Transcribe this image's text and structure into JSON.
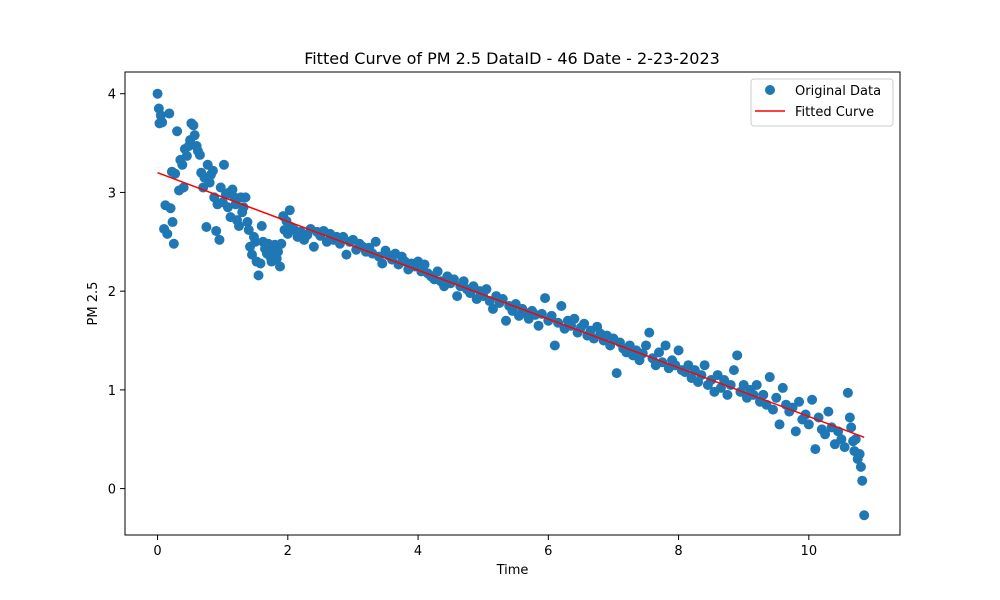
{
  "chart_data": {
    "type": "scatter",
    "title": "Fitted Curve of PM 2.5 DataID - 46 Date - 2-23-2023",
    "xlabel": "Time",
    "ylabel": "PM 2.5",
    "xlim": [
      -0.5,
      11.4
    ],
    "ylim": [
      -0.47,
      4.22
    ],
    "xticks": [
      0,
      2,
      4,
      6,
      8,
      10
    ],
    "yticks": [
      0,
      1,
      2,
      3,
      4
    ],
    "grid": false,
    "legend_position": "top-right",
    "colors": {
      "scatter": "#1f77b4",
      "fit": "#ff0000"
    },
    "series": [
      {
        "name": "Original Data",
        "kind": "scatter",
        "points": [
          [
            0.0,
            4.0
          ],
          [
            0.02,
            3.85
          ],
          [
            0.03,
            3.7
          ],
          [
            0.05,
            3.78
          ],
          [
            0.07,
            3.71
          ],
          [
            0.1,
            2.63
          ],
          [
            0.12,
            2.87
          ],
          [
            0.15,
            2.58
          ],
          [
            0.18,
            3.8
          ],
          [
            0.2,
            2.84
          ],
          [
            0.23,
            2.7
          ],
          [
            0.25,
            2.48
          ],
          [
            0.22,
            3.21
          ],
          [
            0.27,
            3.19
          ],
          [
            0.3,
            3.62
          ],
          [
            0.33,
            3.02
          ],
          [
            0.35,
            3.33
          ],
          [
            0.38,
            3.28
          ],
          [
            0.4,
            3.05
          ],
          [
            0.42,
            3.44
          ],
          [
            0.45,
            3.37
          ],
          [
            0.48,
            3.47
          ],
          [
            0.5,
            3.53
          ],
          [
            0.52,
            3.7
          ],
          [
            0.55,
            3.68
          ],
          [
            0.57,
            3.58
          ],
          [
            0.6,
            3.47
          ],
          [
            0.62,
            3.42
          ],
          [
            0.65,
            3.38
          ],
          [
            0.67,
            3.2
          ],
          [
            0.7,
            3.05
          ],
          [
            0.72,
            3.15
          ],
          [
            0.75,
            2.65
          ],
          [
            0.77,
            3.28
          ],
          [
            0.8,
            3.1
          ],
          [
            0.82,
            3.18
          ],
          [
            0.85,
            3.22
          ],
          [
            0.87,
            2.95
          ],
          [
            0.9,
            2.61
          ],
          [
            0.92,
            2.88
          ],
          [
            0.95,
            2.52
          ],
          [
            0.97,
            3.05
          ],
          [
            1.0,
            2.9
          ],
          [
            1.02,
            3.28
          ],
          [
            1.05,
            2.98
          ],
          [
            1.08,
            2.85
          ],
          [
            1.1,
            3.0
          ],
          [
            1.12,
            2.75
          ],
          [
            1.15,
            3.03
          ],
          [
            1.18,
            2.95
          ],
          [
            1.2,
            2.88
          ],
          [
            1.22,
            2.72
          ],
          [
            1.25,
            2.66
          ],
          [
            1.28,
            2.95
          ],
          [
            1.3,
            2.8
          ],
          [
            1.32,
            2.85
          ],
          [
            1.35,
            2.95
          ],
          [
            1.38,
            2.7
          ],
          [
            1.4,
            2.62
          ],
          [
            1.42,
            2.45
          ],
          [
            1.45,
            2.37
          ],
          [
            1.48,
            2.55
          ],
          [
            1.5,
            2.5
          ],
          [
            1.52,
            2.3
          ],
          [
            1.55,
            2.16
          ],
          [
            1.58,
            2.28
          ],
          [
            1.6,
            2.66
          ],
          [
            1.62,
            2.5
          ],
          [
            1.65,
            2.43
          ],
          [
            1.68,
            2.38
          ],
          [
            1.7,
            2.48
          ],
          [
            1.73,
            2.35
          ],
          [
            1.75,
            2.3
          ],
          [
            1.78,
            2.42
          ],
          [
            1.8,
            2.47
          ],
          [
            1.83,
            2.33
          ],
          [
            1.85,
            2.4
          ],
          [
            1.88,
            2.25
          ],
          [
            1.9,
            2.48
          ],
          [
            1.93,
            2.76
          ],
          [
            1.95,
            2.62
          ],
          [
            1.98,
            2.71
          ],
          [
            2.0,
            2.58
          ],
          [
            2.03,
            2.82
          ],
          [
            2.05,
            2.65
          ],
          [
            2.1,
            2.62
          ],
          [
            2.15,
            2.55
          ],
          [
            2.2,
            2.6
          ],
          [
            2.25,
            2.52
          ],
          [
            2.3,
            2.57
          ],
          [
            2.35,
            2.63
          ],
          [
            2.4,
            2.45
          ],
          [
            2.45,
            2.6
          ],
          [
            2.5,
            2.56
          ],
          [
            2.55,
            2.61
          ],
          [
            2.6,
            2.5
          ],
          [
            2.65,
            2.58
          ],
          [
            2.7,
            2.52
          ],
          [
            2.75,
            2.55
          ],
          [
            2.8,
            2.48
          ],
          [
            2.85,
            2.55
          ],
          [
            2.9,
            2.37
          ],
          [
            2.95,
            2.5
          ],
          [
            3.0,
            2.52
          ],
          [
            3.05,
            2.42
          ],
          [
            3.1,
            2.48
          ],
          [
            3.15,
            2.45
          ],
          [
            3.2,
            2.4
          ],
          [
            3.25,
            2.44
          ],
          [
            3.3,
            2.38
          ],
          [
            3.35,
            2.5
          ],
          [
            3.4,
            2.35
          ],
          [
            3.45,
            2.28
          ],
          [
            3.5,
            2.41
          ],
          [
            3.55,
            2.36
          ],
          [
            3.6,
            2.32
          ],
          [
            3.65,
            2.38
          ],
          [
            3.7,
            2.27
          ],
          [
            3.75,
            2.35
          ],
          [
            3.8,
            2.3
          ],
          [
            3.85,
            2.22
          ],
          [
            3.9,
            2.28
          ],
          [
            3.95,
            2.25
          ],
          [
            4.0,
            2.3
          ],
          [
            4.05,
            2.2
          ],
          [
            4.1,
            2.27
          ],
          [
            4.15,
            2.18
          ],
          [
            4.2,
            2.15
          ],
          [
            4.25,
            2.12
          ],
          [
            4.3,
            2.2
          ],
          [
            4.35,
            2.1
          ],
          [
            4.4,
            2.05
          ],
          [
            4.45,
            2.15
          ],
          [
            4.5,
            2.08
          ],
          [
            4.55,
            2.12
          ],
          [
            4.6,
            1.95
          ],
          [
            4.65,
            2.05
          ],
          [
            4.7,
            2.1
          ],
          [
            4.75,
            2.02
          ],
          [
            4.8,
            1.98
          ],
          [
            4.85,
            2.05
          ],
          [
            4.9,
            1.92
          ],
          [
            4.95,
            2.0
          ],
          [
            5.0,
            1.95
          ],
          [
            5.05,
            2.02
          ],
          [
            5.1,
            1.9
          ],
          [
            5.15,
            1.82
          ],
          [
            5.2,
            1.95
          ],
          [
            5.25,
            1.88
          ],
          [
            5.3,
            1.92
          ],
          [
            5.35,
            1.7
          ],
          [
            5.4,
            1.85
          ],
          [
            5.45,
            1.8
          ],
          [
            5.5,
            1.87
          ],
          [
            5.55,
            1.75
          ],
          [
            5.6,
            1.82
          ],
          [
            5.65,
            1.78
          ],
          [
            5.7,
            1.72
          ],
          [
            5.75,
            1.8
          ],
          [
            5.8,
            1.76
          ],
          [
            5.85,
            1.65
          ],
          [
            5.9,
            1.77
          ],
          [
            5.95,
            1.93
          ],
          [
            6.0,
            1.7
          ],
          [
            6.05,
            1.75
          ],
          [
            6.1,
            1.45
          ],
          [
            6.15,
            1.68
          ],
          [
            6.2,
            1.85
          ],
          [
            6.25,
            1.62
          ],
          [
            6.3,
            1.7
          ],
          [
            6.35,
            1.65
          ],
          [
            6.4,
            1.72
          ],
          [
            6.45,
            1.58
          ],
          [
            6.5,
            1.63
          ],
          [
            6.55,
            1.67
          ],
          [
            6.6,
            1.55
          ],
          [
            6.65,
            1.6
          ],
          [
            6.7,
            1.52
          ],
          [
            6.75,
            1.64
          ],
          [
            6.8,
            1.57
          ],
          [
            6.85,
            1.5
          ],
          [
            6.9,
            1.55
          ],
          [
            6.95,
            1.45
          ],
          [
            7.0,
            1.52
          ],
          [
            7.05,
            1.17
          ],
          [
            7.1,
            1.48
          ],
          [
            7.15,
            1.42
          ],
          [
            7.2,
            1.38
          ],
          [
            7.25,
            1.45
          ],
          [
            7.3,
            1.35
          ],
          [
            7.35,
            1.4
          ],
          [
            7.4,
            1.3
          ],
          [
            7.45,
            1.37
          ],
          [
            7.5,
            1.45
          ],
          [
            7.55,
            1.58
          ],
          [
            7.6,
            1.32
          ],
          [
            7.65,
            1.25
          ],
          [
            7.7,
            1.38
          ],
          [
            7.75,
            1.28
          ],
          [
            7.8,
            1.45
          ],
          [
            7.85,
            1.22
          ],
          [
            7.9,
            1.3
          ],
          [
            7.95,
            1.25
          ],
          [
            8.0,
            1.4
          ],
          [
            8.05,
            1.2
          ],
          [
            8.1,
            1.18
          ],
          [
            8.15,
            1.25
          ],
          [
            8.2,
            1.12
          ],
          [
            8.25,
            1.2
          ],
          [
            8.3,
            1.08
          ],
          [
            8.35,
            1.15
          ],
          [
            8.4,
            1.25
          ],
          [
            8.45,
            1.05
          ],
          [
            8.5,
            1.1
          ],
          [
            8.55,
            0.98
          ],
          [
            8.6,
            1.15
          ],
          [
            8.65,
            1.02
          ],
          [
            8.7,
            1.1
          ],
          [
            8.75,
            0.95
          ],
          [
            8.8,
            1.05
          ],
          [
            8.85,
            1.2
          ],
          [
            8.9,
            1.35
          ],
          [
            8.95,
            0.98
          ],
          [
            9.0,
            1.05
          ],
          [
            9.05,
            0.92
          ],
          [
            9.1,
            1.0
          ],
          [
            9.15,
            0.95
          ],
          [
            9.2,
            1.05
          ],
          [
            9.25,
            0.88
          ],
          [
            9.3,
            0.95
          ],
          [
            9.35,
            0.85
          ],
          [
            9.4,
            1.13
          ],
          [
            9.45,
            0.8
          ],
          [
            9.5,
            0.92
          ],
          [
            9.55,
            0.65
          ],
          [
            9.6,
            1.02
          ],
          [
            9.65,
            0.85
          ],
          [
            9.7,
            0.78
          ],
          [
            9.75,
            0.82
          ],
          [
            9.8,
            0.58
          ],
          [
            9.85,
            0.88
          ],
          [
            9.9,
            0.7
          ],
          [
            9.95,
            0.75
          ],
          [
            10.0,
            0.65
          ],
          [
            10.05,
            0.9
          ],
          [
            10.1,
            0.4
          ],
          [
            10.15,
            0.72
          ],
          [
            10.2,
            0.6
          ],
          [
            10.25,
            0.55
          ],
          [
            10.3,
            0.78
          ],
          [
            10.35,
            0.62
          ],
          [
            10.4,
            0.45
          ],
          [
            10.45,
            0.58
          ],
          [
            10.5,
            0.5
          ],
          [
            10.55,
            0.42
          ],
          [
            10.6,
            0.97
          ],
          [
            10.63,
            0.72
          ],
          [
            10.65,
            0.62
          ],
          [
            10.68,
            0.48
          ],
          [
            10.7,
            0.38
          ],
          [
            10.72,
            0.5
          ],
          [
            10.75,
            0.3
          ],
          [
            10.78,
            0.35
          ],
          [
            10.8,
            0.22
          ],
          [
            10.82,
            0.08
          ],
          [
            10.85,
            -0.27
          ]
        ]
      },
      {
        "name": "Fitted Curve",
        "kind": "line",
        "points": [
          [
            0.0,
            3.2
          ],
          [
            10.85,
            0.52
          ]
        ]
      }
    ]
  }
}
